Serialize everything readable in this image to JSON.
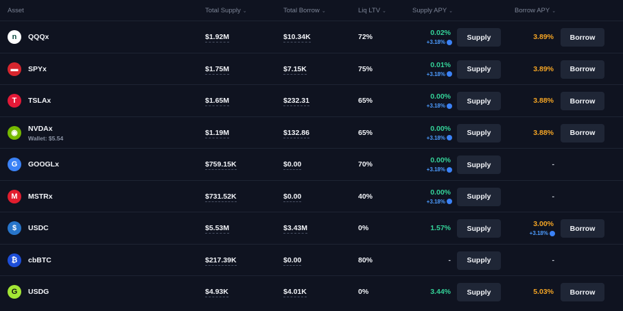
{
  "header": {
    "asset": "Asset",
    "total_supply": "Total Supply",
    "total_borrow": "Total Borrow",
    "liq_ltv": "Liq LTV",
    "supply_apy": "Supply APY",
    "borrow_apy": "Borrow APY"
  },
  "buttons": {
    "supply": "Supply",
    "borrow": "Borrow"
  },
  "rows": [
    {
      "name": "QQQx",
      "wallet": "",
      "supply": "$1.92M",
      "borrow": "$10.34K",
      "ltv": "72%",
      "supply_apy": "0.02%",
      "supply_bonus": "+3.18%",
      "borrow_apy": "3.89%",
      "borrow_bonus": "",
      "icon": "nasdaq-icon",
      "icon_glyph": "n",
      "icon_bg": "#ffffff",
      "icon_fg": "#0c4a3e"
    },
    {
      "name": "SPYx",
      "wallet": "",
      "supply": "$1.75M",
      "borrow": "$7.15K",
      "ltv": "75%",
      "supply_apy": "0.01%",
      "supply_bonus": "+3.18%",
      "borrow_apy": "3.89%",
      "borrow_bonus": "",
      "icon": "spy-icon",
      "icon_glyph": "▬",
      "icon_bg": "#d7262e",
      "icon_fg": "#ffffff"
    },
    {
      "name": "TSLAx",
      "wallet": "",
      "supply": "$1.65M",
      "borrow": "$232.31",
      "ltv": "65%",
      "supply_apy": "0.00%",
      "supply_bonus": "+3.18%",
      "borrow_apy": "3.88%",
      "borrow_bonus": "",
      "icon": "tesla-icon",
      "icon_glyph": "T",
      "icon_bg": "#e31937",
      "icon_fg": "#ffffff"
    },
    {
      "name": "NVDAx",
      "wallet": "Wallet: $5.54",
      "supply": "$1.19M",
      "borrow": "$132.86",
      "ltv": "65%",
      "supply_apy": "0.00%",
      "supply_bonus": "+3.18%",
      "borrow_apy": "3.88%",
      "borrow_bonus": "",
      "icon": "nvidia-icon",
      "icon_glyph": "◉",
      "icon_bg": "#76b900",
      "icon_fg": "#ffffff"
    },
    {
      "name": "GOOGLx",
      "wallet": "",
      "supply": "$759.15K",
      "borrow": "$0.00",
      "ltv": "70%",
      "supply_apy": "0.00%",
      "supply_bonus": "+3.18%",
      "borrow_apy": "-",
      "borrow_bonus": "",
      "icon": "google-icon",
      "icon_glyph": "G",
      "icon_bg": "#3b82f6",
      "icon_fg": "#ffffff"
    },
    {
      "name": "MSTRx",
      "wallet": "",
      "supply": "$731.52K",
      "borrow": "$0.00",
      "ltv": "40%",
      "supply_apy": "0.00%",
      "supply_bonus": "+3.18%",
      "borrow_apy": "-",
      "borrow_bonus": "",
      "icon": "microstrategy-icon",
      "icon_glyph": "M",
      "icon_bg": "#e11d2e",
      "icon_fg": "#ffffff"
    },
    {
      "name": "USDC",
      "wallet": "",
      "supply": "$5.53M",
      "borrow": "$3.43M",
      "ltv": "0%",
      "supply_apy": "1.57%",
      "supply_bonus": "",
      "borrow_apy": "3.00%",
      "borrow_bonus": "+3.18%",
      "icon": "usdc-icon",
      "icon_glyph": "$",
      "icon_bg": "#2775ca",
      "icon_fg": "#ffffff"
    },
    {
      "name": "cbBTC",
      "wallet": "",
      "supply": "$217.39K",
      "borrow": "$0.00",
      "ltv": "80%",
      "supply_apy": "-",
      "supply_bonus": "",
      "borrow_apy": "-",
      "borrow_bonus": "",
      "icon": "cbbtc-icon",
      "icon_glyph": "₿",
      "icon_bg": "#1d4ed8",
      "icon_fg": "#ffffff"
    },
    {
      "name": "USDG",
      "wallet": "",
      "supply": "$4.93K",
      "borrow": "$4.01K",
      "ltv": "0%",
      "supply_apy": "3.44%",
      "supply_bonus": "",
      "borrow_apy": "5.03%",
      "borrow_bonus": "",
      "icon": "usdg-icon",
      "icon_glyph": "G",
      "icon_bg": "#a3e635",
      "icon_fg": "#111111"
    }
  ],
  "colors": {
    "background": "#0f1320",
    "green": "#34d399",
    "orange": "#f5a524",
    "bonus": "#4d9cff",
    "button": "#1f2636"
  }
}
